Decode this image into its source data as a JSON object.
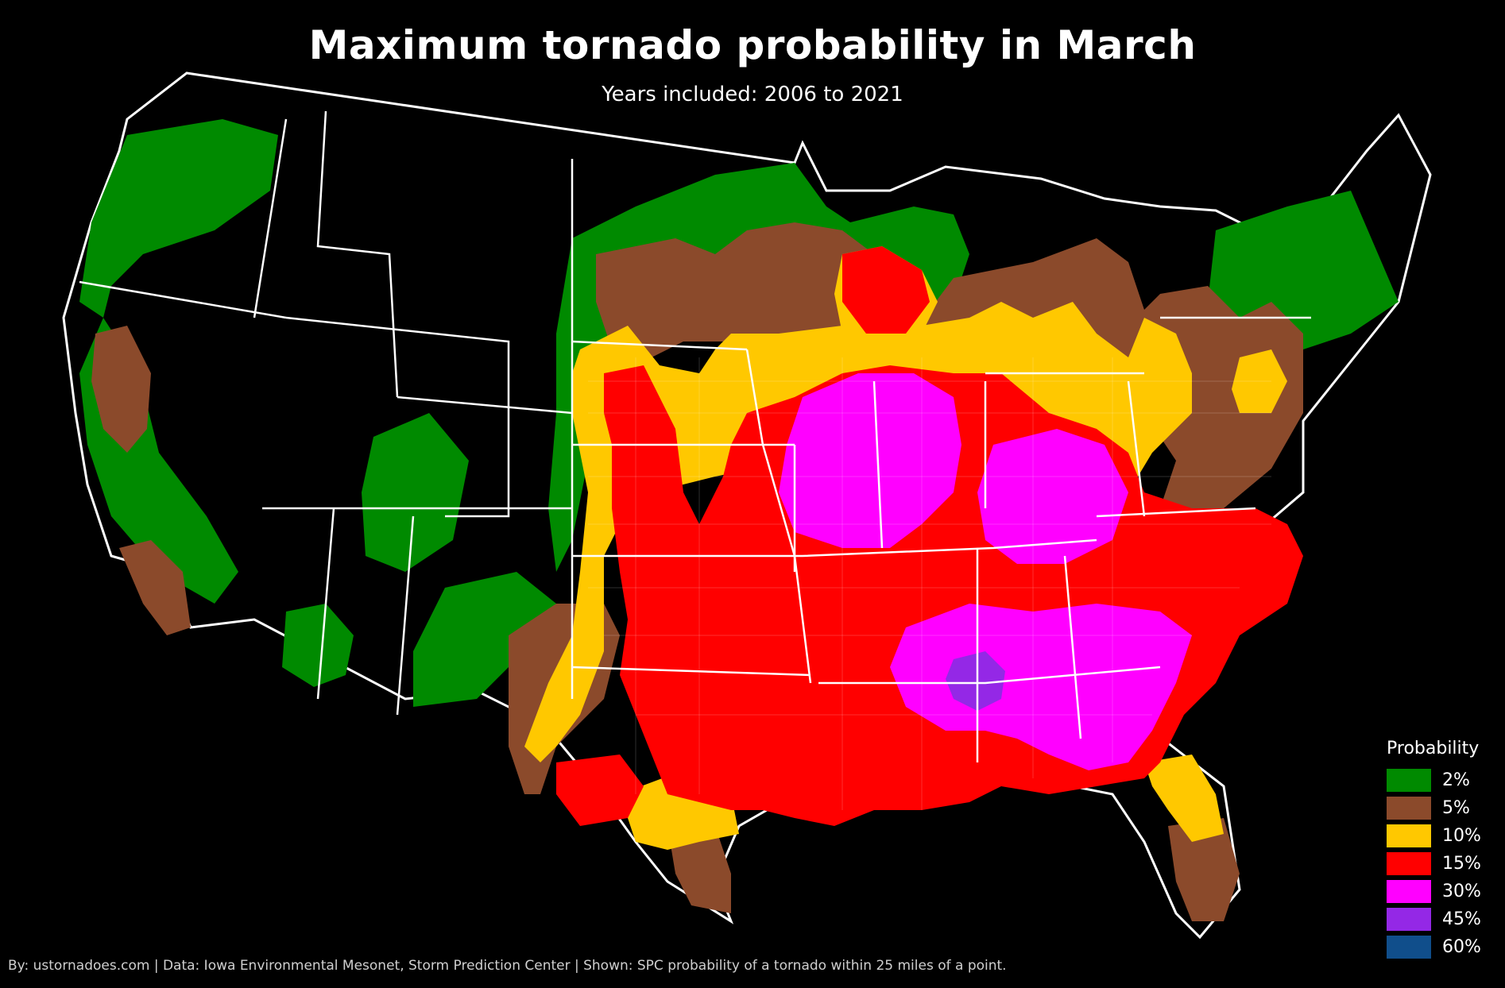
{
  "title": "Maximum tornado probability in March",
  "subtitle": "Years included: 2006 to 2021",
  "credit": "By: ustornadoes.com | Data: Iowa Environmental Mesonet, Storm Prediction Center | Shown: SPC probability of a tornado within 25 miles of a point.",
  "legend": {
    "title": "Probability",
    "items": [
      {
        "label": "2%",
        "color": "#008a00"
      },
      {
        "label": "5%",
        "color": "#8b4a2b"
      },
      {
        "label": "10%",
        "color": "#ffc800"
      },
      {
        "label": "15%",
        "color": "#ff0000"
      },
      {
        "label": "30%",
        "color": "#ff00ff"
      },
      {
        "label": "45%",
        "color": "#9428e6"
      },
      {
        "label": "60%",
        "color": "#104e8b"
      }
    ]
  },
  "colors": {
    "background": "#000000",
    "borders": "#ffffff"
  }
}
